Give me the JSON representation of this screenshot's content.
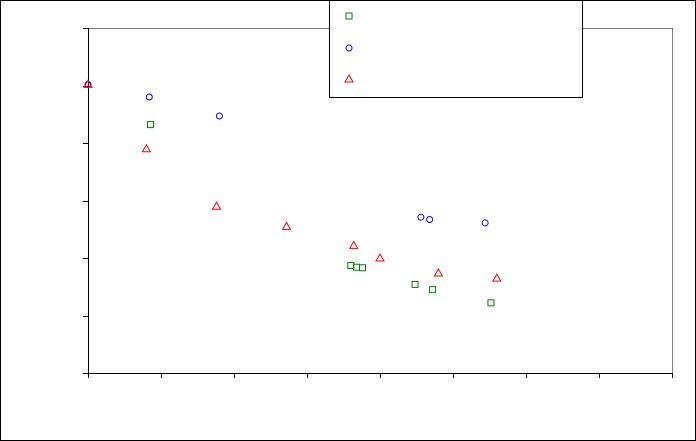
{
  "chart_data": {
    "type": "scatter",
    "title": "",
    "xlabel": "",
    "ylabel": "",
    "xlim": [
      0,
      10
    ],
    "ylim": [
      0,
      6
    ],
    "grid": false,
    "legend_placement": "top-right",
    "series": [
      {
        "marker": "square",
        "color": "#008000",
        "points": [
          [
            1.07,
            4.32
          ],
          [
            4.5,
            1.87
          ],
          [
            4.6,
            1.84
          ],
          [
            4.7,
            1.83
          ],
          [
            5.6,
            1.54
          ],
          [
            5.9,
            1.45
          ],
          [
            6.9,
            1.22
          ]
        ]
      },
      {
        "marker": "circle",
        "color": "#0000ff",
        "points": [
          [
            0.0,
            5.02
          ],
          [
            1.05,
            4.8
          ],
          [
            2.25,
            4.47
          ],
          [
            5.7,
            2.71
          ],
          [
            5.85,
            2.67
          ],
          [
            6.8,
            2.61
          ]
        ]
      },
      {
        "marker": "triangle",
        "color": "#ff0000",
        "points": [
          [
            0.0,
            5.02
          ],
          [
            1.0,
            3.9
          ],
          [
            2.2,
            2.9
          ],
          [
            3.4,
            2.55
          ],
          [
            4.55,
            2.22
          ],
          [
            5.0,
            2.0
          ],
          [
            6.0,
            1.74
          ],
          [
            7.0,
            1.65
          ]
        ]
      }
    ]
  }
}
